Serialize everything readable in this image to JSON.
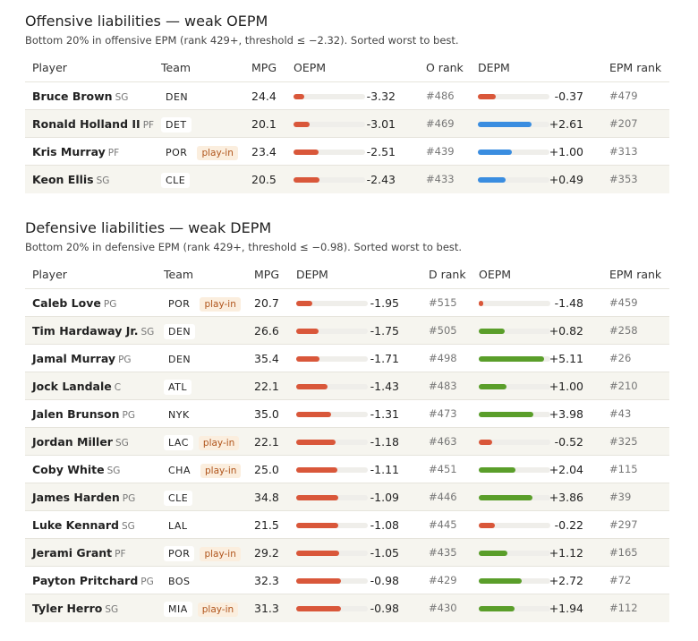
{
  "sections": [
    {
      "title": "Offensive liabilities — weak OEPM",
      "subtitle": "Bottom 20% in offensive EPM (rank 429+, threshold ≤ −2.32). Sorted worst to best.",
      "columns": [
        "Player",
        "Team",
        "MPG",
        "OEPM",
        "O rank",
        "DEPM",
        "EPM rank"
      ],
      "rows": [
        {
          "player": "Bruce Brown",
          "pos": "SG",
          "team": "DEN",
          "mpg": "24.4",
          "metric": "-3.32",
          "rank": "#486",
          "other": "-0.37",
          "epm_rank": "#479"
        },
        {
          "player": "Ronald Holland II",
          "pos": "PF",
          "team": "DET",
          "mpg": "20.1",
          "metric": "-3.01",
          "rank": "#469",
          "other": "+2.61",
          "epm_rank": "#207"
        },
        {
          "player": "Kris Murray",
          "pos": "PF",
          "team": "POR",
          "tag": "play-in",
          "mpg": "23.4",
          "metric": "-2.51",
          "rank": "#439",
          "other": "+1.00",
          "epm_rank": "#313"
        },
        {
          "player": "Keon Ellis",
          "pos": "SG",
          "team": "CLE",
          "mpg": "20.5",
          "metric": "-2.43",
          "rank": "#433",
          "other": "+0.49",
          "epm_rank": "#353"
        }
      ]
    },
    {
      "title": "Defensive liabilities — weak DEPM",
      "subtitle": "Bottom 20% in defensive EPM (rank 429+, threshold ≤ −0.98). Sorted worst to best.",
      "columns": [
        "Player",
        "Team",
        "MPG",
        "DEPM",
        "D rank",
        "OEPM",
        "EPM rank"
      ],
      "rows": [
        {
          "player": "Caleb Love",
          "pos": "PG",
          "team": "POR",
          "tag": "play-in",
          "mpg": "20.7",
          "metric": "-1.95",
          "rank": "#515",
          "other": "-1.48",
          "epm_rank": "#459"
        },
        {
          "player": "Tim Hardaway Jr.",
          "pos": "SG",
          "team": "DEN",
          "mpg": "26.6",
          "metric": "-1.75",
          "rank": "#505",
          "other": "+0.82",
          "epm_rank": "#258"
        },
        {
          "player": "Jamal Murray",
          "pos": "PG",
          "team": "DEN",
          "mpg": "35.4",
          "metric": "-1.71",
          "rank": "#498",
          "other": "+5.11",
          "epm_rank": "#26"
        },
        {
          "player": "Jock Landale",
          "pos": "C",
          "team": "ATL",
          "mpg": "22.1",
          "metric": "-1.43",
          "rank": "#483",
          "other": "+1.00",
          "epm_rank": "#210"
        },
        {
          "player": "Jalen Brunson",
          "pos": "PG",
          "team": "NYK",
          "mpg": "35.0",
          "metric": "-1.31",
          "rank": "#473",
          "other": "+3.98",
          "epm_rank": "#43"
        },
        {
          "player": "Jordan Miller",
          "pos": "SG",
          "team": "LAC",
          "tag": "play-in",
          "mpg": "22.1",
          "metric": "-1.18",
          "rank": "#463",
          "other": "-0.52",
          "epm_rank": "#325"
        },
        {
          "player": "Coby White",
          "pos": "SG",
          "team": "CHA",
          "tag": "play-in",
          "mpg": "25.0",
          "metric": "-1.11",
          "rank": "#451",
          "other": "+2.04",
          "epm_rank": "#115"
        },
        {
          "player": "James Harden",
          "pos": "PG",
          "team": "CLE",
          "mpg": "34.8",
          "metric": "-1.09",
          "rank": "#446",
          "other": "+3.86",
          "epm_rank": "#39"
        },
        {
          "player": "Luke Kennard",
          "pos": "SG",
          "team": "LAL",
          "mpg": "21.5",
          "metric": "-1.08",
          "rank": "#445",
          "other": "-0.22",
          "epm_rank": "#297"
        },
        {
          "player": "Jerami Grant",
          "pos": "PF",
          "team": "POR",
          "tag": "play-in",
          "mpg": "29.2",
          "metric": "-1.05",
          "rank": "#435",
          "other": "+1.12",
          "epm_rank": "#165"
        },
        {
          "player": "Payton Pritchard",
          "pos": "PG",
          "team": "BOS",
          "mpg": "32.3",
          "metric": "-0.98",
          "rank": "#429",
          "other": "+2.72",
          "epm_rank": "#72"
        },
        {
          "player": "Tyler Herro",
          "pos": "SG",
          "team": "MIA",
          "tag": "play-in",
          "mpg": "31.3",
          "metric": "-0.98",
          "rank": "#430",
          "other": "+1.94",
          "epm_rank": "#112"
        }
      ]
    }
  ]
}
